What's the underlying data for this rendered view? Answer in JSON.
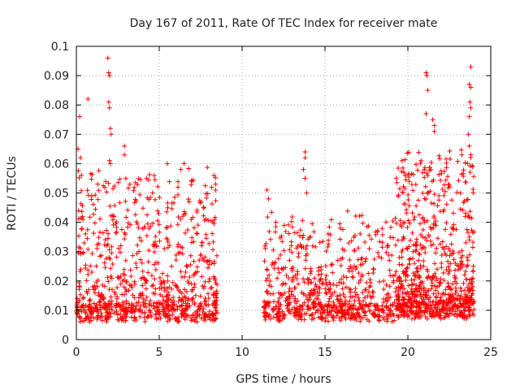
{
  "chart_data": {
    "type": "scatter",
    "title": "Day 167 of 2011, Rate Of TEC Index for receiver mate",
    "xlabel": "GPS time / hours",
    "ylabel": "ROTI / TECUs",
    "xlim": [
      0,
      25
    ],
    "ylim": [
      0,
      0.1
    ],
    "x_ticks": [
      0,
      5,
      10,
      15,
      20,
      25
    ],
    "x_tick_labels": [
      "0",
      "5",
      "10",
      "15",
      "20",
      "25"
    ],
    "y_ticks": [
      0,
      0.01,
      0.02,
      0.03,
      0.04,
      0.05,
      0.06,
      0.07,
      0.08,
      0.09,
      0.1
    ],
    "y_tick_labels": [
      "0",
      "0.01",
      "0.02",
      "0.03",
      "0.04",
      "0.05",
      "0.06",
      "0.07",
      "0.08",
      "0.09",
      "0.1"
    ],
    "grid": true,
    "marker": "+",
    "color": "#ff0000",
    "gap_hours": [
      8.5,
      11.3
    ],
    "segments": [
      {
        "x_start": 0.0,
        "x_end": 8.5,
        "count": 900,
        "base": 0.009,
        "spread": 0.022
      },
      {
        "x_start": 11.3,
        "x_end": 19.3,
        "count": 700,
        "base": 0.009,
        "spread": 0.015
      },
      {
        "x_start": 19.3,
        "x_end": 24.0,
        "count": 800,
        "base": 0.01,
        "spread": 0.025
      }
    ],
    "highlight_points": [
      {
        "x": 0.1,
        "y": 0.065
      },
      {
        "x": 0.2,
        "y": 0.076
      },
      {
        "x": 0.3,
        "y": 0.056
      },
      {
        "x": 0.25,
        "y": 0.062
      },
      {
        "x": 0.7,
        "y": 0.082
      },
      {
        "x": 1.9,
        "y": 0.096
      },
      {
        "x": 1.95,
        "y": 0.091
      },
      {
        "x": 2.0,
        "y": 0.09
      },
      {
        "x": 1.95,
        "y": 0.081
      },
      {
        "x": 2.0,
        "y": 0.079
      },
      {
        "x": 2.05,
        "y": 0.072
      },
      {
        "x": 2.1,
        "y": 0.07
      },
      {
        "x": 2.0,
        "y": 0.061
      },
      {
        "x": 2.05,
        "y": 0.06
      },
      {
        "x": 2.9,
        "y": 0.066
      },
      {
        "x": 2.9,
        "y": 0.063
      },
      {
        "x": 6.5,
        "y": 0.06
      },
      {
        "x": 6.3,
        "y": 0.058
      },
      {
        "x": 8.3,
        "y": 0.056
      },
      {
        "x": 8.4,
        "y": 0.053
      },
      {
        "x": 11.5,
        "y": 0.051
      },
      {
        "x": 11.6,
        "y": 0.048
      },
      {
        "x": 13.8,
        "y": 0.064
      },
      {
        "x": 13.8,
        "y": 0.062
      },
      {
        "x": 13.7,
        "y": 0.058
      },
      {
        "x": 13.8,
        "y": 0.055
      },
      {
        "x": 13.9,
        "y": 0.05
      },
      {
        "x": 20.8,
        "y": 0.061
      },
      {
        "x": 21.0,
        "y": 0.058
      },
      {
        "x": 21.2,
        "y": 0.056
      },
      {
        "x": 21.1,
        "y": 0.091
      },
      {
        "x": 21.15,
        "y": 0.09
      },
      {
        "x": 21.2,
        "y": 0.085
      },
      {
        "x": 21.1,
        "y": 0.077
      },
      {
        "x": 21.5,
        "y": 0.075
      },
      {
        "x": 21.6,
        "y": 0.073
      },
      {
        "x": 21.6,
        "y": 0.071
      },
      {
        "x": 23.8,
        "y": 0.093
      },
      {
        "x": 23.7,
        "y": 0.087
      },
      {
        "x": 23.8,
        "y": 0.086
      },
      {
        "x": 23.75,
        "y": 0.081
      },
      {
        "x": 23.8,
        "y": 0.079
      },
      {
        "x": 23.7,
        "y": 0.076
      },
      {
        "x": 23.65,
        "y": 0.07
      },
      {
        "x": 23.7,
        "y": 0.066
      },
      {
        "x": 23.8,
        "y": 0.063
      },
      {
        "x": 23.9,
        "y": 0.059
      }
    ]
  }
}
